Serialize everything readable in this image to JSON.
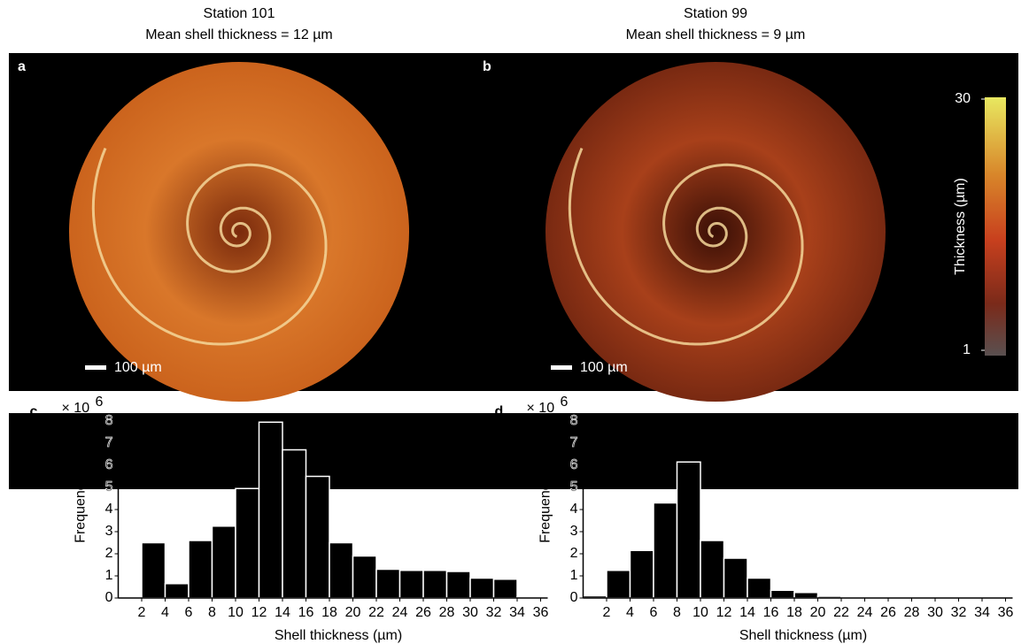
{
  "panels": [
    {
      "letter": "a",
      "title": "Station 101",
      "subtitle": "Mean shell thickness = 12 µm",
      "scale_bar": "100 µm"
    },
    {
      "letter": "b",
      "title": "Station 99",
      "subtitle": "Mean shell thickness = 9 µm",
      "scale_bar": "100 µm"
    }
  ],
  "colorbar": {
    "label": "Thickness (µm)",
    "lim": [
      1,
      30
    ],
    "ticks": [
      1,
      30
    ]
  },
  "chart_data": [
    {
      "type": "histogram",
      "letter": "c",
      "multiplier": "× 10",
      "multiplier_exponent": "6",
      "bins": [
        0,
        2,
        4,
        6,
        8,
        10,
        12,
        14,
        16,
        18,
        20,
        22,
        24,
        26,
        28,
        30,
        32,
        34,
        36
      ],
      "values": [
        0.05,
        2.5,
        0.65,
        2.6,
        3.25,
        4.95,
        7.95,
        6.7,
        5.5,
        2.5,
        1.9,
        1.3,
        1.25,
        1.25,
        1.2,
        0.9,
        0.85,
        0.05
      ],
      "color": "#000000",
      "xlabel": "Shell thickness (µm)",
      "ylabel": "Frequency",
      "xlim": [
        0,
        36
      ],
      "ylim": [
        0,
        8
      ],
      "xticks": [
        2,
        4,
        6,
        8,
        10,
        12,
        14,
        16,
        18,
        20,
        22,
        24,
        26,
        28,
        30,
        32,
        34,
        36
      ],
      "yticks": [
        0,
        1,
        2,
        3,
        4,
        5,
        6,
        7,
        8
      ]
    },
    {
      "type": "histogram",
      "letter": "d",
      "multiplier": "× 10",
      "multiplier_exponent": "6",
      "bins": [
        0,
        2,
        4,
        6,
        8,
        10,
        12,
        14,
        16,
        18,
        20,
        22,
        24,
        26,
        28,
        30,
        32,
        34,
        36
      ],
      "values": [
        0.1,
        1.25,
        2.15,
        4.3,
        6.15,
        2.6,
        1.8,
        0.9,
        0.35,
        0.25,
        0.08,
        0.04,
        0.03,
        0.03,
        0.03,
        0.01,
        0.01,
        0.01
      ],
      "color": "#000000",
      "xlabel": "Shell thickness (µm)",
      "ylabel": "Frequency",
      "xlim": [
        0,
        36
      ],
      "ylim": [
        0,
        8
      ],
      "xticks": [
        2,
        4,
        6,
        8,
        10,
        12,
        14,
        16,
        18,
        20,
        22,
        24,
        26,
        28,
        30,
        32,
        34,
        36
      ],
      "yticks": [
        0,
        1,
        2,
        3,
        4,
        5,
        6,
        7,
        8
      ]
    }
  ]
}
